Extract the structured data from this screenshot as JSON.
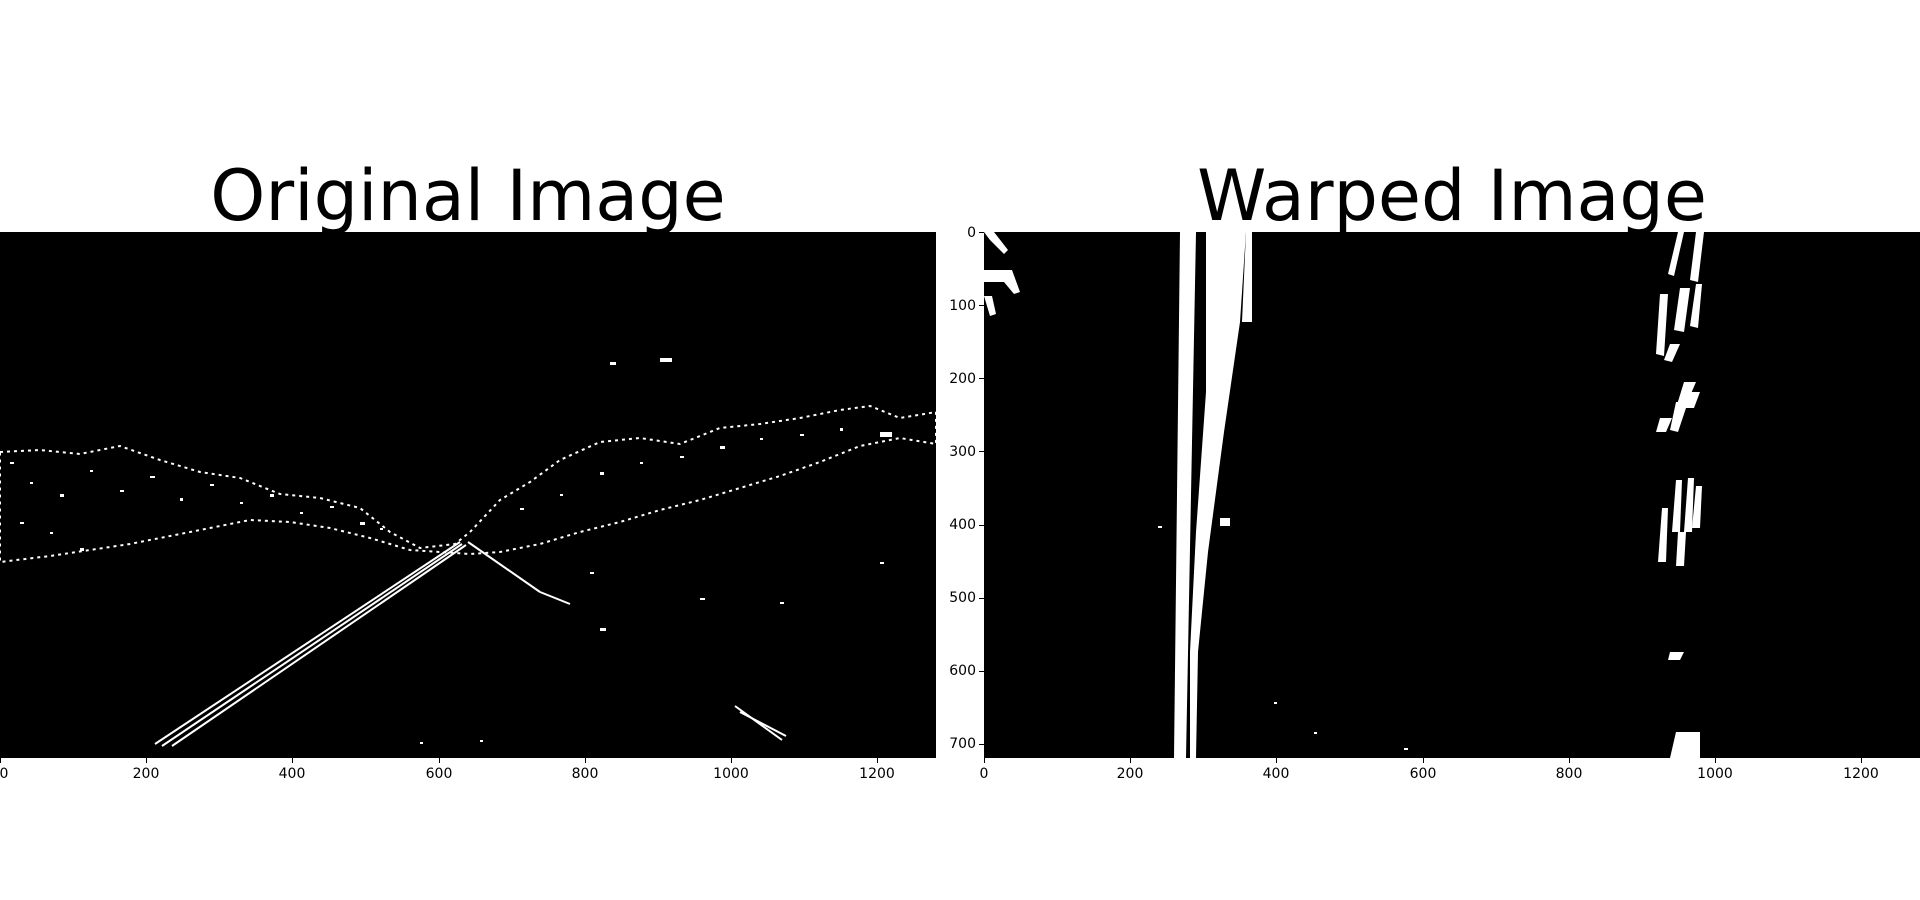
{
  "figure": {
    "panels": [
      {
        "title": "Original Image",
        "image_description": "binary thresholded road edge image",
        "x_ticks": [
          "0",
          "200",
          "400",
          "600",
          "800",
          "1000",
          "1200"
        ],
        "y_ticks": []
      },
      {
        "title": "Warped Image",
        "image_description": "binary bird's-eye warped lane lines",
        "x_ticks": [
          "0",
          "200",
          "400",
          "600",
          "800",
          "1000",
          "1200"
        ],
        "y_ticks": [
          "0",
          "100",
          "200",
          "300",
          "400",
          "500",
          "600",
          "700"
        ]
      }
    ]
  },
  "colors": {
    "background": "#ffffff",
    "image_bg": "#000000",
    "edges": "#ffffff"
  }
}
